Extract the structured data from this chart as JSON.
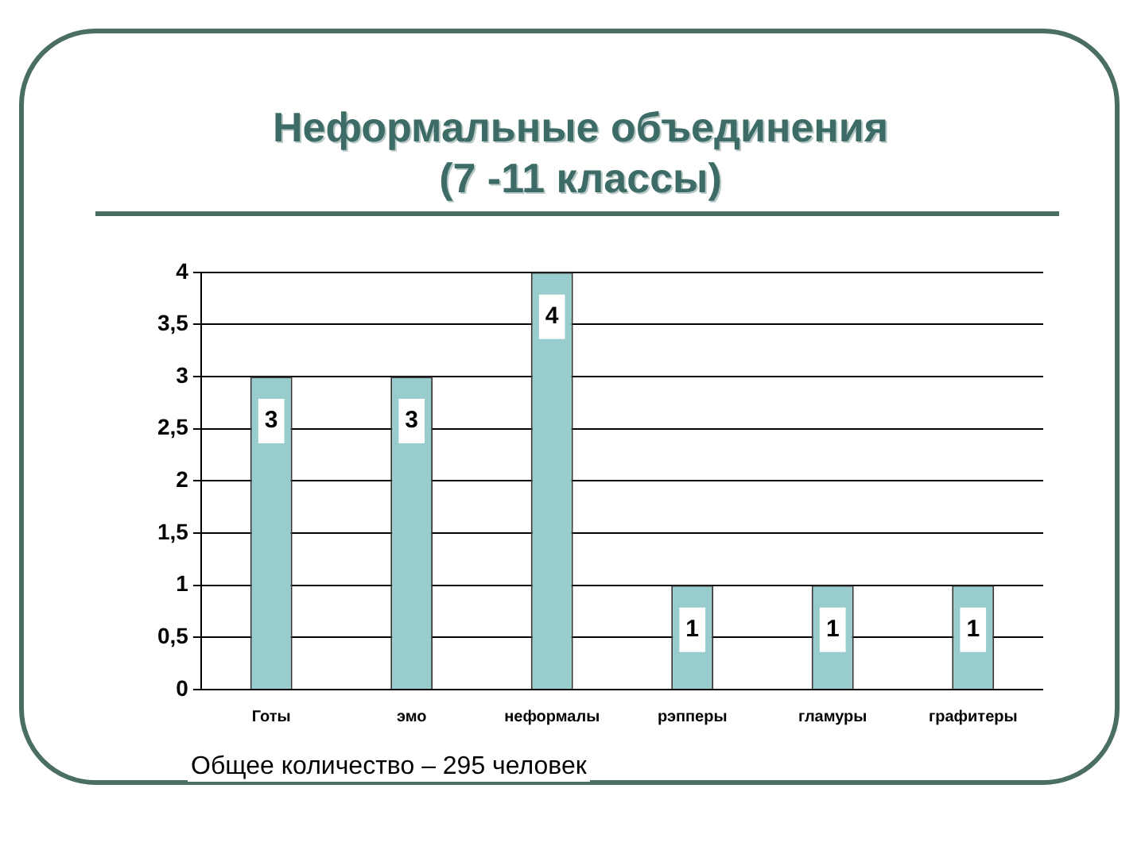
{
  "chart_data": {
    "type": "bar",
    "title": "Неформальные объединения\n(7 -11 классы)",
    "categories": [
      "Готы",
      "эмо",
      "неформалы",
      "рэпперы",
      "гламуры",
      "графитеры"
    ],
    "values": [
      3,
      3,
      4,
      1,
      1,
      1
    ],
    "color": "#99cccc",
    "ylim": [
      0,
      4
    ],
    "yticks": [
      0,
      {
        "value": 0.5,
        "label": "0,5"
      },
      1,
      {
        "value": 1.5,
        "label": "1,5"
      },
      2,
      {
        "value": 2.5,
        "label": "2,5"
      },
      3,
      {
        "value": 3.5,
        "label": "3,5"
      },
      4
    ],
    "grid": "y",
    "data_labels": true,
    "annotations": [
      "Общее количество – 295 человек"
    ]
  }
}
